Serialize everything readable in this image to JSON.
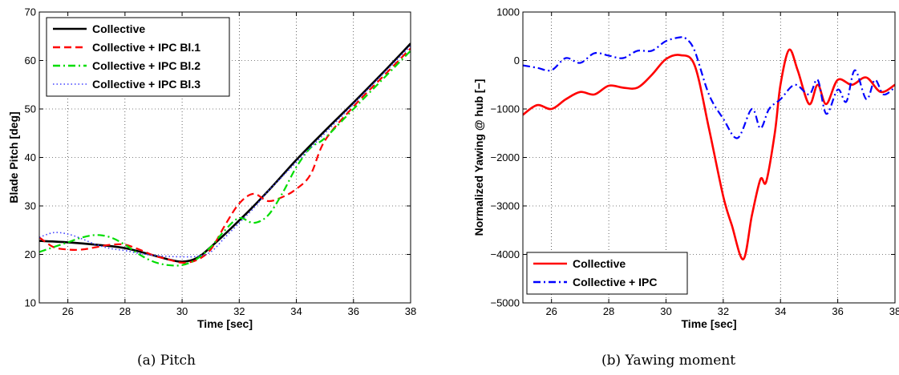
{
  "figure": {
    "caption_a": "(a)  Pitch",
    "caption_b": "(b)  Yawing moment"
  },
  "chart_data": [
    {
      "type": "line",
      "xlabel": "Time [sec]",
      "ylabel": "Blade Pitch [deg]",
      "xlim": [
        25,
        38
      ],
      "ylim": [
        10,
        70
      ],
      "xticks": [
        26,
        28,
        30,
        32,
        34,
        36,
        38
      ],
      "yticks": [
        10,
        20,
        30,
        40,
        50,
        60,
        70
      ],
      "grid": true,
      "legend_position": "top-left",
      "series": [
        {
          "name": "Collective",
          "color": "#000000",
          "style": "solid",
          "x": [
            25,
            26,
            27,
            28,
            29,
            29.5,
            30,
            30.5,
            31,
            32,
            33,
            34,
            35,
            36,
            37,
            38
          ],
          "y": [
            22.8,
            22.5,
            22.0,
            21.3,
            19.8,
            19.0,
            18.5,
            19.2,
            21.5,
            27.0,
            33.0,
            39.5,
            45.5,
            51.3,
            57.3,
            63.5
          ]
        },
        {
          "name": "Collective + IPC Bl.1",
          "color": "#ff0000",
          "style": "dashed",
          "x": [
            25,
            25.5,
            26,
            26.5,
            27,
            27.5,
            28,
            28.5,
            29,
            29.5,
            30,
            30.5,
            31,
            31.5,
            32,
            32.5,
            33,
            33.5,
            34,
            34.5,
            35,
            36,
            37,
            38
          ],
          "y": [
            23.5,
            21.5,
            21.0,
            21.0,
            21.5,
            22.0,
            22.0,
            21.0,
            19.8,
            19.0,
            18.3,
            18.8,
            21.0,
            26.0,
            30.5,
            32.5,
            31.0,
            31.8,
            33.5,
            36.5,
            43.5,
            50.5,
            56.5,
            62.5
          ]
        },
        {
          "name": "Collective + IPC Bl.2",
          "color": "#00dd00",
          "style": "dashdot",
          "x": [
            25,
            25.5,
            26,
            26.5,
            27,
            27.5,
            28,
            28.5,
            29,
            29.5,
            30,
            30.5,
            31,
            31.5,
            32,
            32.5,
            33,
            33.5,
            34,
            34.5,
            35,
            36,
            37,
            38
          ],
          "y": [
            20.5,
            21.5,
            22.5,
            23.5,
            24.0,
            23.5,
            22.0,
            20.0,
            18.5,
            17.8,
            17.8,
            19.0,
            21.5,
            25.0,
            27.5,
            26.5,
            28.0,
            32.5,
            38.0,
            42.0,
            44.0,
            50.0,
            56.0,
            62.0
          ]
        },
        {
          "name": "Collective + IPC Bl.3",
          "color": "#4040ff",
          "style": "dotted",
          "x": [
            25,
            25.5,
            26,
            26.5,
            27,
            27.5,
            28,
            28.5,
            29,
            29.5,
            30,
            30.5,
            31,
            31.5,
            32,
            32.5,
            33,
            33.5,
            34,
            34.5,
            35,
            36,
            37,
            38
          ],
          "y": [
            23.5,
            24.5,
            24.2,
            23.2,
            22.0,
            21.2,
            20.8,
            20.2,
            19.8,
            19.6,
            19.5,
            19.6,
            20.5,
            23.5,
            26.5,
            29.5,
            33.0,
            36.0,
            39.0,
            42.0,
            45.0,
            51.0,
            57.0,
            63.0
          ]
        }
      ]
    },
    {
      "type": "line",
      "xlabel": "Time [sec]",
      "ylabel": "Normalized Yawing @ hub [−]",
      "xlim": [
        25,
        38
      ],
      "ylim": [
        -5000,
        1000
      ],
      "xticks": [
        26,
        28,
        30,
        32,
        34,
        36,
        38
      ],
      "yticks": [
        -5000,
        -4000,
        -3000,
        -2000,
        -1000,
        0,
        1000
      ],
      "grid": true,
      "legend_position": "bottom-left",
      "series": [
        {
          "name": "Collective",
          "color": "#ff0000",
          "style": "solid",
          "x": [
            25,
            25.5,
            26,
            26.5,
            27,
            27.5,
            28,
            28.5,
            29,
            29.5,
            30,
            30.5,
            31,
            31.5,
            32,
            32.3,
            32.7,
            33,
            33.3,
            33.5,
            33.8,
            34,
            34.3,
            34.6,
            35,
            35.3,
            35.6,
            36,
            36.5,
            37,
            37.5,
            38
          ],
          "y": [
            -1120,
            -920,
            -1000,
            -800,
            -650,
            -700,
            -520,
            -560,
            -560,
            -300,
            30,
            110,
            -100,
            -1400,
            -2800,
            -3400,
            -4100,
            -3200,
            -2450,
            -2500,
            -1500,
            -500,
            220,
            -200,
            -900,
            -500,
            -900,
            -400,
            -500,
            -350,
            -650,
            -500
          ]
        },
        {
          "name": "Collective + IPC",
          "color": "#0000ff",
          "style": "dashdot",
          "x": [
            25,
            25.5,
            26,
            26.5,
            27,
            27.5,
            28,
            28.5,
            29,
            29.5,
            30,
            30.5,
            30.7,
            31,
            31.5,
            32,
            32.5,
            33,
            33.3,
            33.6,
            34,
            34.5,
            35,
            35.3,
            35.6,
            36,
            36.3,
            36.6,
            37,
            37.3,
            37.6,
            38
          ],
          "y": [
            -100,
            -150,
            -200,
            50,
            -50,
            150,
            100,
            50,
            200,
            200,
            400,
            480,
            450,
            200,
            -700,
            -1200,
            -1600,
            -1000,
            -1400,
            -1000,
            -800,
            -500,
            -700,
            -400,
            -1100,
            -600,
            -850,
            -200,
            -800,
            -400,
            -700,
            -550
          ]
        }
      ]
    }
  ]
}
